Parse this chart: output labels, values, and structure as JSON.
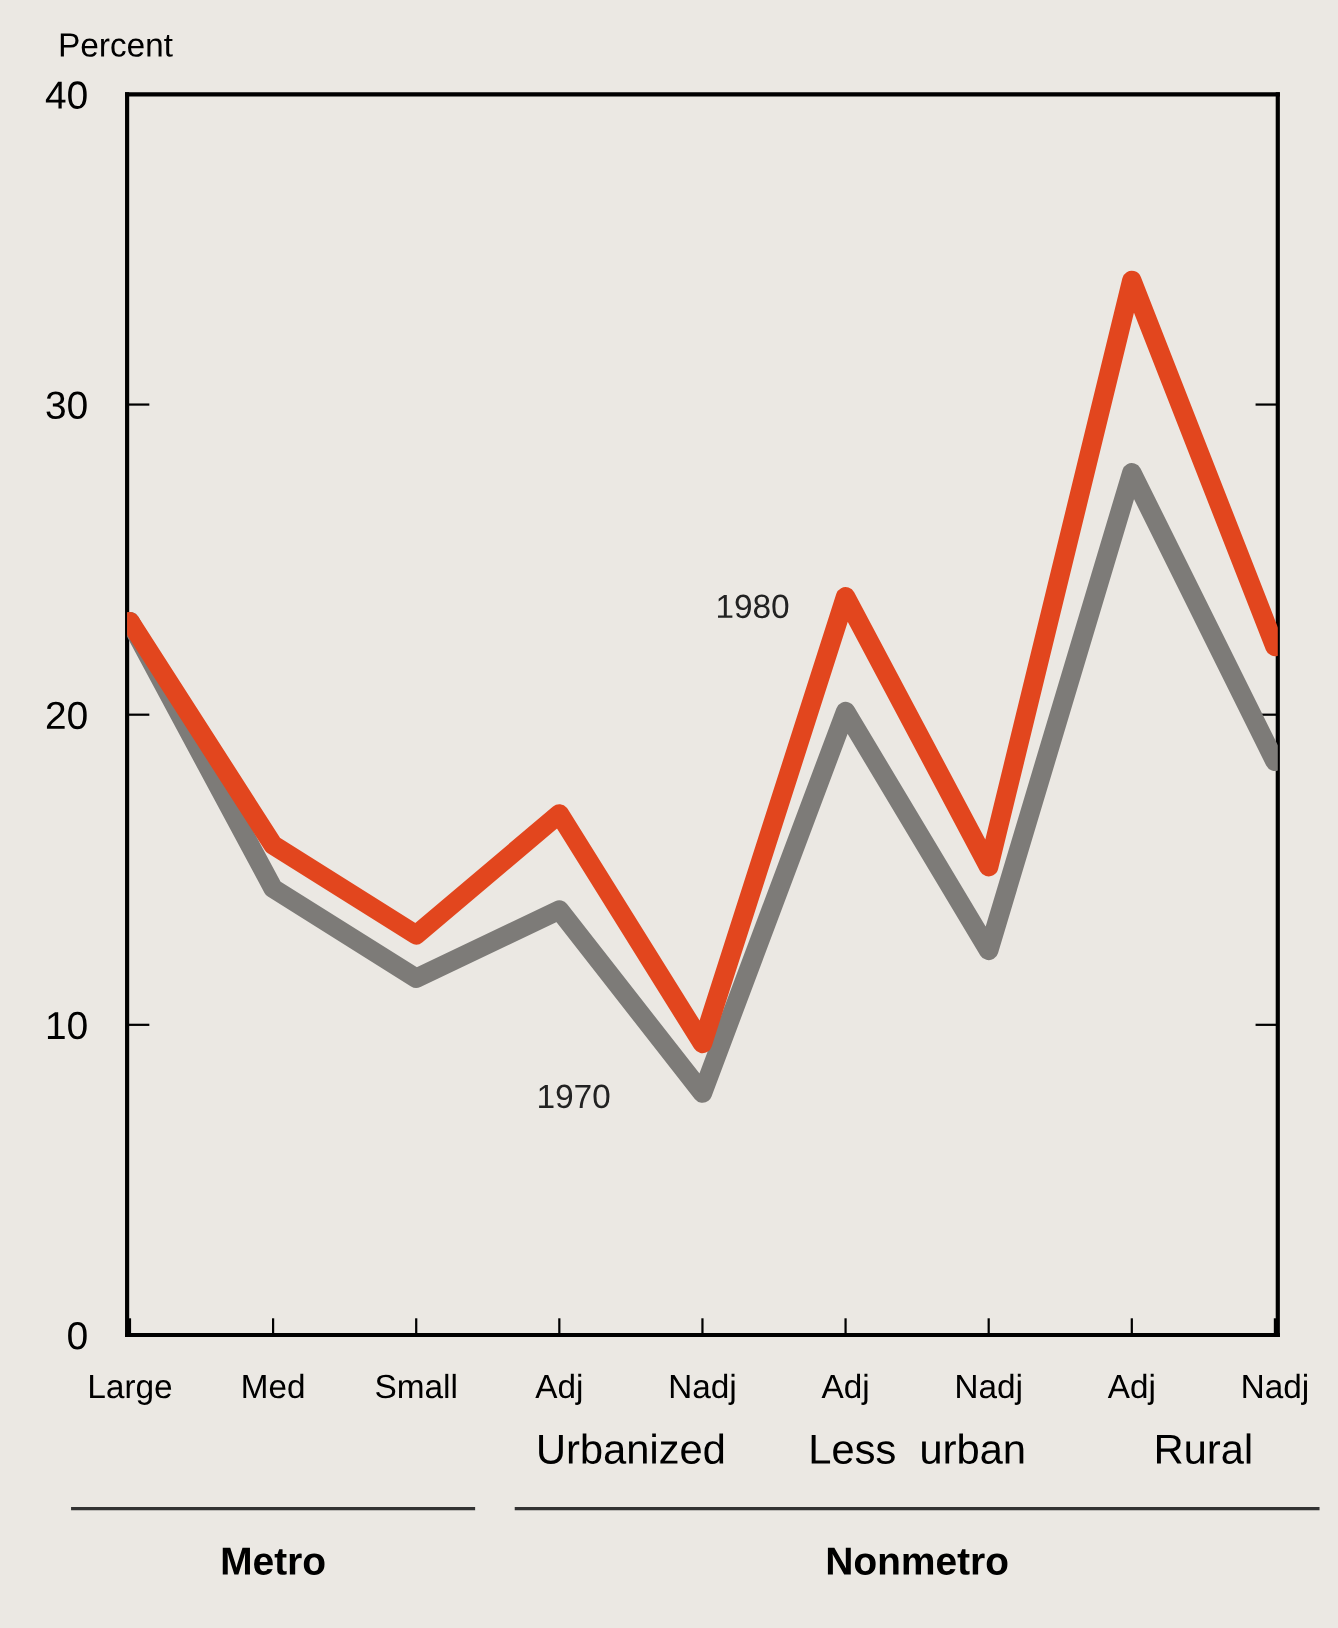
{
  "chart_data": {
    "type": "line",
    "ylabel": "Percent",
    "categories": [
      "Large",
      "Med",
      "Small",
      "Adj",
      "Nadj",
      "Adj",
      "Nadj",
      "Adj",
      "Nadj"
    ],
    "series": [
      {
        "name": "1970",
        "color": "#7d7b78",
        "values": [
          23.0,
          14.4,
          11.5,
          13.7,
          7.8,
          20.1,
          12.4,
          27.8,
          18.5
        ]
      },
      {
        "name": "1980",
        "color": "#e2461e",
        "values": [
          23.0,
          15.8,
          12.9,
          16.8,
          9.4,
          23.8,
          15.1,
          34.0,
          22.2
        ]
      }
    ],
    "ylim": [
      0,
      40
    ],
    "yticks": [
      0,
      10,
      20,
      30,
      40
    ],
    "grid": false,
    "legend": false,
    "marker": "none",
    "line_style": "solid",
    "annotations": [
      "Urbanized",
      "Less  urban",
      "Rural",
      "Metro",
      "Nonmetro"
    ]
  }
}
